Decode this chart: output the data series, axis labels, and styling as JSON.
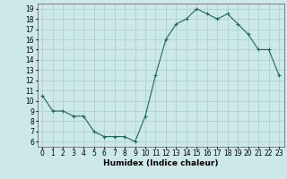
{
  "x": [
    0,
    1,
    2,
    3,
    4,
    5,
    6,
    7,
    8,
    9,
    10,
    11,
    12,
    13,
    14,
    15,
    16,
    17,
    18,
    19,
    20,
    21,
    22,
    23
  ],
  "y": [
    10.5,
    9.0,
    9.0,
    8.5,
    8.5,
    7.0,
    6.5,
    6.5,
    6.5,
    6.0,
    8.5,
    12.5,
    16.0,
    17.5,
    18.0,
    19.0,
    18.5,
    18.0,
    18.5,
    17.5,
    16.5,
    15.0,
    15.0,
    12.5
  ],
  "xlabel": "Humidex (Indice chaleur)",
  "ylim": [
    5.5,
    19.5
  ],
  "xlim": [
    -0.5,
    23.5
  ],
  "yticks": [
    6,
    7,
    8,
    9,
    10,
    11,
    12,
    13,
    14,
    15,
    16,
    17,
    18,
    19
  ],
  "xticks": [
    0,
    1,
    2,
    3,
    4,
    5,
    6,
    7,
    8,
    9,
    10,
    11,
    12,
    13,
    14,
    15,
    16,
    17,
    18,
    19,
    20,
    21,
    22,
    23
  ],
  "line_color": "#1a6b5a",
  "marker": "+",
  "bg_color": "#cce8e8",
  "grid_color": "#aacccc",
  "tick_fontsize": 5.5,
  "xlabel_fontsize": 6.5
}
